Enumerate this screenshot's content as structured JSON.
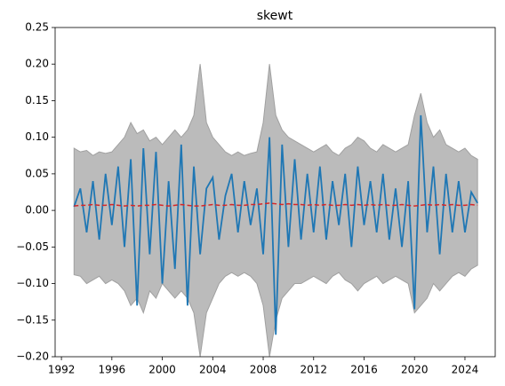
{
  "chart_data": {
    "type": "line",
    "title": "skewt",
    "x": [
      1993,
      1993.5,
      1994,
      1994.5,
      1995,
      1995.5,
      1996,
      1996.5,
      1997,
      1997.5,
      1998,
      1998.5,
      1999,
      1999.5,
      2000,
      2000.5,
      2001,
      2001.5,
      2002,
      2002.5,
      2003,
      2003.5,
      2004,
      2004.5,
      2005,
      2005.5,
      2006,
      2006.5,
      2007,
      2007.5,
      2008,
      2008.5,
      2009,
      2009.5,
      2010,
      2010.5,
      2011,
      2011.5,
      2012,
      2012.5,
      2013,
      2013.5,
      2014,
      2014.5,
      2015,
      2015.5,
      2016,
      2016.5,
      2017,
      2017.5,
      2018,
      2018.5,
      2019,
      2019.5,
      2020,
      2020.5,
      2021,
      2021.5,
      2022,
      2022.5,
      2023,
      2023.5,
      2024,
      2024.5,
      2025
    ],
    "band": {
      "color": "#bbbbbb",
      "edge": "#a0a0a0",
      "upper": [
        0.085,
        0.08,
        0.082,
        0.075,
        0.08,
        0.078,
        0.08,
        0.09,
        0.1,
        0.12,
        0.105,
        0.11,
        0.095,
        0.1,
        0.09,
        0.1,
        0.11,
        0.1,
        0.11,
        0.13,
        0.2,
        0.12,
        0.1,
        0.09,
        0.08,
        0.075,
        0.08,
        0.075,
        0.078,
        0.08,
        0.12,
        0.2,
        0.13,
        0.11,
        0.1,
        0.095,
        0.09,
        0.085,
        0.08,
        0.085,
        0.09,
        0.08,
        0.075,
        0.085,
        0.09,
        0.1,
        0.095,
        0.085,
        0.08,
        0.09,
        0.085,
        0.08,
        0.085,
        0.09,
        0.13,
        0.16,
        0.12,
        0.1,
        0.11,
        0.09,
        0.085,
        0.08,
        0.085,
        0.075,
        0.07
      ],
      "lower": [
        -0.088,
        -0.09,
        -0.1,
        -0.095,
        -0.09,
        -0.1,
        -0.095,
        -0.1,
        -0.11,
        -0.13,
        -0.12,
        -0.14,
        -0.11,
        -0.12,
        -0.1,
        -0.11,
        -0.12,
        -0.11,
        -0.12,
        -0.14,
        -0.2,
        -0.14,
        -0.12,
        -0.1,
        -0.09,
        -0.085,
        -0.09,
        -0.085,
        -0.09,
        -0.1,
        -0.13,
        -0.2,
        -0.15,
        -0.12,
        -0.11,
        -0.1,
        -0.1,
        -0.095,
        -0.09,
        -0.095,
        -0.1,
        -0.09,
        -0.085,
        -0.095,
        -0.1,
        -0.11,
        -0.1,
        -0.095,
        -0.09,
        -0.1,
        -0.095,
        -0.09,
        -0.095,
        -0.1,
        -0.14,
        -0.13,
        -0.12,
        -0.1,
        -0.11,
        -0.1,
        -0.09,
        -0.085,
        -0.09,
        -0.08,
        -0.075
      ]
    },
    "series": [
      {
        "color": "#1f77b4",
        "linestyle": "solid",
        "values": [
          0.005,
          0.03,
          -0.03,
          0.04,
          -0.04,
          0.05,
          -0.02,
          0.06,
          -0.05,
          0.07,
          -0.13,
          0.085,
          -0.06,
          0.08,
          -0.1,
          0.04,
          -0.08,
          0.09,
          -0.13,
          0.06,
          -0.06,
          0.03,
          0.045,
          -0.04,
          0.02,
          0.05,
          -0.03,
          0.04,
          -0.02,
          0.03,
          -0.06,
          0.1,
          -0.17,
          0.09,
          -0.05,
          0.07,
          -0.04,
          0.05,
          -0.03,
          0.06,
          -0.04,
          0.04,
          -0.02,
          0.05,
          -0.05,
          0.06,
          -0.02,
          0.04,
          -0.03,
          0.05,
          -0.04,
          0.03,
          -0.05,
          0.04,
          -0.135,
          0.13,
          -0.03,
          0.06,
          -0.06,
          0.05,
          -0.03,
          0.04,
          -0.03,
          0.025,
          0.01
        ]
      },
      {
        "color": "#d62728",
        "linestyle": "dashed",
        "values": [
          0.006,
          0.007,
          0.007,
          0.008,
          0.007,
          0.007,
          0.008,
          0.007,
          0.006,
          0.007,
          0.006,
          0.007,
          0.007,
          0.008,
          0.007,
          0.006,
          0.007,
          0.008,
          0.007,
          0.006,
          0.006,
          0.007,
          0.008,
          0.007,
          0.007,
          0.008,
          0.007,
          0.007,
          0.008,
          0.008,
          0.009,
          0.01,
          0.009,
          0.008,
          0.009,
          0.008,
          0.008,
          0.007,
          0.008,
          0.007,
          0.008,
          0.007,
          0.007,
          0.008,
          0.007,
          0.008,
          0.007,
          0.008,
          0.007,
          0.008,
          0.007,
          0.007,
          0.008,
          0.007,
          0.006,
          0.007,
          0.008,
          0.007,
          0.008,
          0.007,
          0.008,
          0.007,
          0.007,
          0.008,
          0.007
        ]
      }
    ],
    "xlim": [
      1991.5,
      2026.4
    ],
    "xticks": [
      1992,
      1996,
      2000,
      2004,
      2008,
      2012,
      2016,
      2020,
      2024
    ],
    "ylim": [
      -0.2,
      0.25
    ],
    "yticks": [
      {
        "value": -0.2,
        "label": "−0.20"
      },
      {
        "value": -0.15,
        "label": "−0.15"
      },
      {
        "value": -0.1,
        "label": "−0.10"
      },
      {
        "value": -0.05,
        "label": "−0.05"
      },
      {
        "value": 0,
        "label": "0.00"
      },
      0.05,
      {
        "value": 0.1,
        "label": "0.10"
      },
      0.15,
      {
        "value": 0.2,
        "label": "0.20"
      },
      0.25
    ]
  }
}
